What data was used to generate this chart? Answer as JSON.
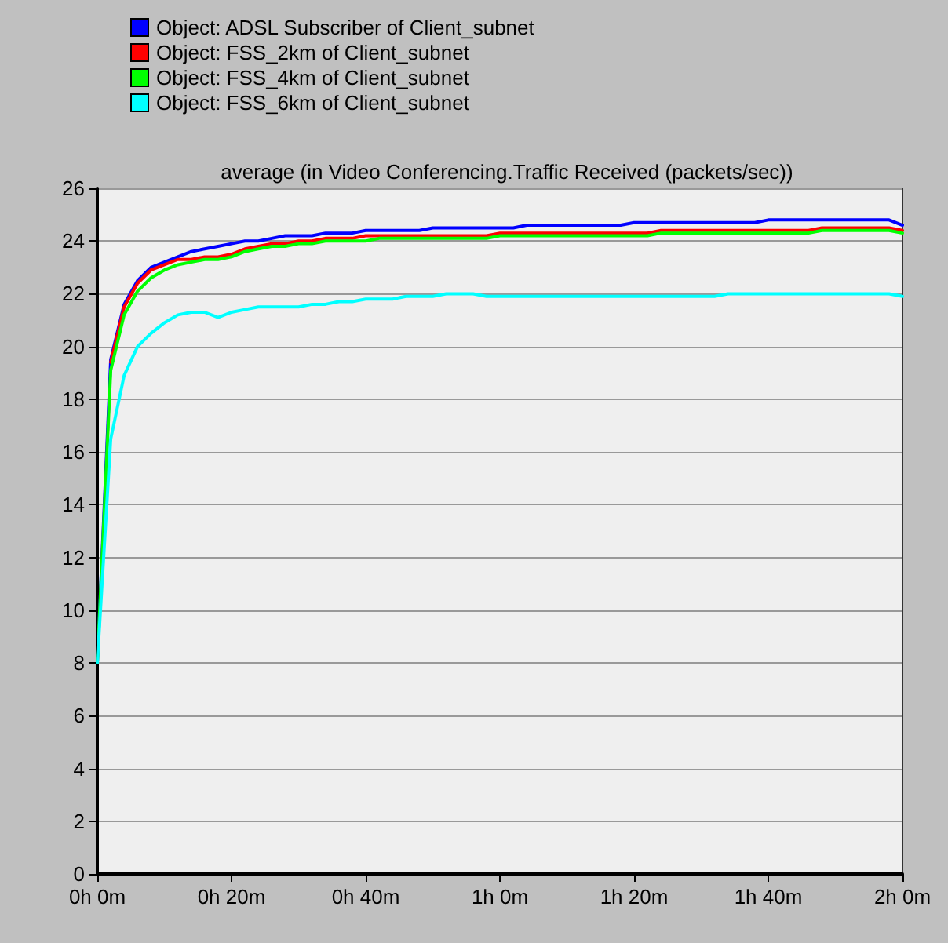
{
  "chart_data": {
    "type": "line",
    "title": "average (in Video Conferencing.Traffic Received (packets/sec))",
    "categories": [
      "0h 0m",
      null,
      null,
      null,
      null,
      null,
      null,
      null,
      null,
      null,
      "0h 20m",
      null,
      null,
      null,
      null,
      null,
      null,
      null,
      null,
      null,
      "0h 40m",
      null,
      null,
      null,
      null,
      null,
      null,
      null,
      null,
      null,
      "1h 0m",
      null,
      null,
      null,
      null,
      null,
      null,
      null,
      null,
      null,
      "1h 20m",
      null,
      null,
      null,
      null,
      null,
      null,
      null,
      null,
      null,
      "1h 40m",
      null,
      null,
      null,
      null,
      null,
      null,
      null,
      null,
      null,
      "2h 0m"
    ],
    "series": [
      {
        "name": "Object: ADSL Subscriber of Client_subnet",
        "color": "#0000ff",
        "values": [
          8,
          19.5,
          21.6,
          22.5,
          23.0,
          23.2,
          23.4,
          23.6,
          23.7,
          23.8,
          23.9,
          24.0,
          24.0,
          24.1,
          24.2,
          24.2,
          24.2,
          24.3,
          24.3,
          24.3,
          24.4,
          24.4,
          24.4,
          24.4,
          24.4,
          24.5,
          24.5,
          24.5,
          24.5,
          24.5,
          24.5,
          24.5,
          24.6,
          24.6,
          24.6,
          24.6,
          24.6,
          24.6,
          24.6,
          24.6,
          24.7,
          24.7,
          24.7,
          24.7,
          24.7,
          24.7,
          24.7,
          24.7,
          24.7,
          24.7,
          24.8,
          24.8,
          24.8,
          24.8,
          24.8,
          24.8,
          24.8,
          24.8,
          24.8,
          24.8,
          24.6
        ]
      },
      {
        "name": "Object: FSS_2km of Client_subnet",
        "color": "#ff0000",
        "values": [
          null,
          19.4,
          21.5,
          22.4,
          22.9,
          23.1,
          23.3,
          23.3,
          23.4,
          23.4,
          23.5,
          23.7,
          23.8,
          23.9,
          23.9,
          24.0,
          24.0,
          24.1,
          24.1,
          24.1,
          24.2,
          24.2,
          24.2,
          24.2,
          24.2,
          24.2,
          24.2,
          24.2,
          24.2,
          24.2,
          24.3,
          24.3,
          24.3,
          24.3,
          24.3,
          24.3,
          24.3,
          24.3,
          24.3,
          24.3,
          24.3,
          24.3,
          24.4,
          24.4,
          24.4,
          24.4,
          24.4,
          24.4,
          24.4,
          24.4,
          24.4,
          24.4,
          24.4,
          24.4,
          24.5,
          24.5,
          24.5,
          24.5,
          24.5,
          24.5,
          24.4
        ]
      },
      {
        "name": "Object: FSS_4km of Client_subnet",
        "color": "#00ff00",
        "values": [
          8,
          19.1,
          21.2,
          22.1,
          22.6,
          22.9,
          23.1,
          23.2,
          23.3,
          23.3,
          23.4,
          23.6,
          23.7,
          23.8,
          23.8,
          23.9,
          23.9,
          24.0,
          24.0,
          24.0,
          24.0,
          24.1,
          24.1,
          24.1,
          24.1,
          24.1,
          24.1,
          24.1,
          24.1,
          24.1,
          24.2,
          24.2,
          24.2,
          24.2,
          24.2,
          24.2,
          24.2,
          24.2,
          24.2,
          24.2,
          24.2,
          24.2,
          24.3,
          24.3,
          24.3,
          24.3,
          24.3,
          24.3,
          24.3,
          24.3,
          24.3,
          24.3,
          24.3,
          24.3,
          24.4,
          24.4,
          24.4,
          24.4,
          24.4,
          24.4,
          24.3
        ]
      },
      {
        "name": "Object: FSS_6km of Client_subnet",
        "color": "#00ffff",
        "values": [
          8,
          16.5,
          18.9,
          20.0,
          20.5,
          20.9,
          21.2,
          21.3,
          21.3,
          21.1,
          21.3,
          21.4,
          21.5,
          21.5,
          21.5,
          21.5,
          21.6,
          21.6,
          21.7,
          21.7,
          21.8,
          21.8,
          21.8,
          21.9,
          21.9,
          21.9,
          22.0,
          22.0,
          22.0,
          21.9,
          21.9,
          21.9,
          21.9,
          21.9,
          21.9,
          21.9,
          21.9,
          21.9,
          21.9,
          21.9,
          21.9,
          21.9,
          21.9,
          21.9,
          21.9,
          21.9,
          21.9,
          22.0,
          22.0,
          22.0,
          22.0,
          22.0,
          22.0,
          22.0,
          22.0,
          22.0,
          22.0,
          22.0,
          22.0,
          22.0,
          21.9
        ]
      }
    ],
    "ylim": [
      0,
      26
    ],
    "yticks": [
      0,
      2,
      4,
      6,
      8,
      10,
      12,
      14,
      16,
      18,
      20,
      22,
      24,
      26
    ],
    "grid": "y",
    "legend": "top left",
    "marker": "none",
    "line_style": "solid"
  }
}
